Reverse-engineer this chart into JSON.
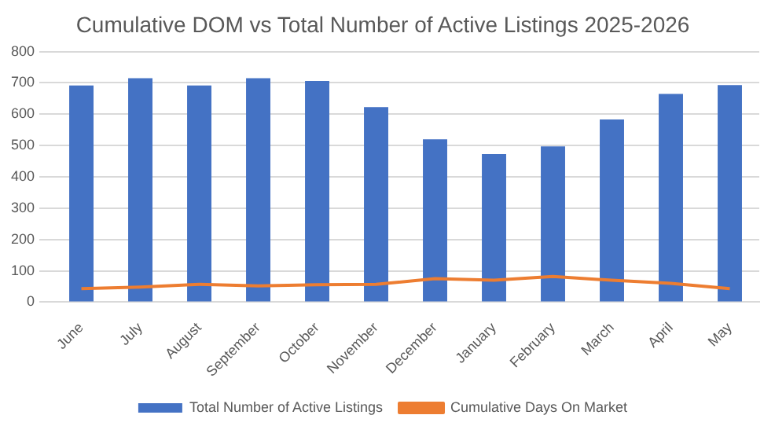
{
  "chart_data": {
    "type": "bar",
    "title": "Cumulative DOM vs Total Number of Active Listings 2025-2026",
    "categories": [
      "June",
      "July",
      "August",
      "September",
      "October",
      "November",
      "December",
      "January",
      "February",
      "March",
      "April",
      "May"
    ],
    "series": [
      {
        "name": "Total Number of Active Listings",
        "color": "#4472c4",
        "values": [
          692,
          715,
          692,
          715,
          706,
          623,
          520,
          473,
          497,
          583,
          665,
          693
        ]
      },
      {
        "name": "Cumulative Days On Market",
        "type": "line",
        "color": "#ed7d31",
        "values": [
          43,
          48,
          57,
          52,
          56,
          57,
          75,
          70,
          82,
          70,
          60,
          43
        ]
      }
    ],
    "ylim": [
      0,
      800
    ],
    "yticks": [
      0,
      100,
      200,
      300,
      400,
      500,
      600,
      700,
      800
    ],
    "grid": "y",
    "legend": "bottom",
    "marker": "none"
  }
}
